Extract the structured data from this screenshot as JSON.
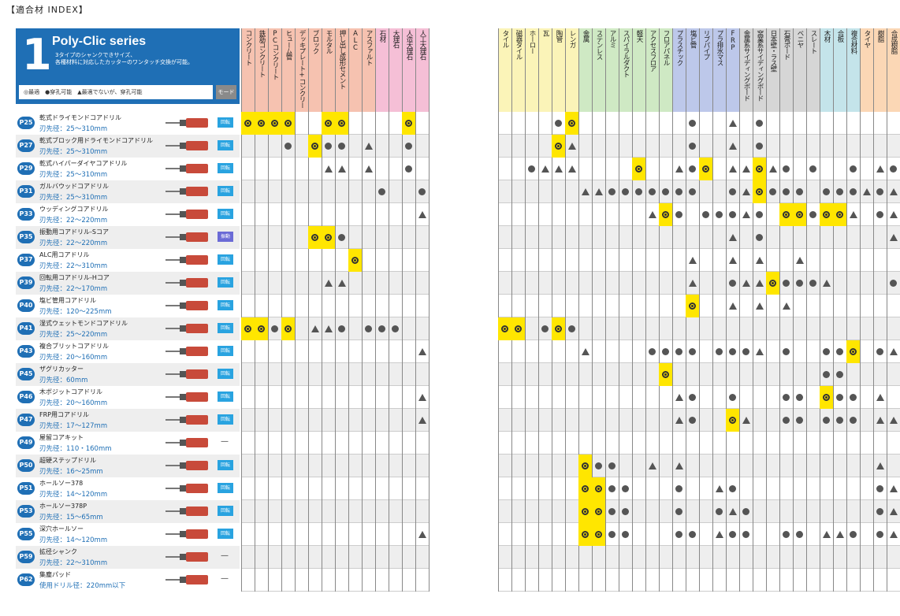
{
  "title": "【適合材 INDEX】",
  "header": {
    "number": "1",
    "series": "Poly-Clic series",
    "desc": "3タイプのシャンクできサイズ、\n各種材料に対応したカッターのワンタッチ交換が可能。",
    "legend": "◎最適　●穿孔可能　▲最適でないが、穿孔可能",
    "mode": "モード"
  },
  "products": [
    {
      "page": "P25",
      "name": "乾式ドライモンドコアドリル",
      "dia": "刃先径：25～310mm",
      "mode": "回転"
    },
    {
      "page": "P27",
      "name": "乾式ブロック用ドライモンドコアドリル",
      "dia": "刃先径：25～310mm",
      "mode": "回転"
    },
    {
      "page": "P29",
      "name": "乾式ハイパーダイヤコアドリル",
      "dia": "刃先径：25～310mm",
      "mode": "回転"
    },
    {
      "page": "P31",
      "name": "ガルバウッドコアドリル",
      "dia": "刃先径：25～310mm",
      "mode": "回転"
    },
    {
      "page": "P33",
      "name": "ウッディングコアドリル",
      "dia": "刃先径：22～220mm",
      "mode": "回転"
    },
    {
      "page": "P35",
      "name": "振動用コアドリル-Sコア",
      "dia": "刃先径：22～220mm",
      "mode": "振動"
    },
    {
      "page": "P37",
      "name": "ALC用コアドリル",
      "dia": "刃先径：22～310mm",
      "mode": "回転"
    },
    {
      "page": "P39",
      "name": "回転用コアドリル-Hコア",
      "dia": "刃先径：22～170mm",
      "mode": "回転"
    },
    {
      "page": "P40",
      "name": "塩ビ管用コアドリル",
      "dia": "刃先径：120～225mm",
      "mode": "回転"
    },
    {
      "page": "P41",
      "name": "湿式ウェットモンドコアドリル",
      "dia": "刃先径：25～220mm",
      "mode": "回転"
    },
    {
      "page": "P43",
      "name": "複合ブリットコアドリル",
      "dia": "刃先径：20～160mm",
      "mode": "回転"
    },
    {
      "page": "P45",
      "name": "ザグリカッター",
      "dia": "刃先径：60mm",
      "mode": "回転"
    },
    {
      "page": "P46",
      "name": "木ボジットコアドリル",
      "dia": "刃先径：20～160mm",
      "mode": "回転"
    },
    {
      "page": "P47",
      "name": "FRP用コアドリル",
      "dia": "刃先径：17～127mm",
      "mode": "回転"
    },
    {
      "page": "P49",
      "name": "屋留コアキット",
      "dia": "刃先径：110・160mm",
      "mode": "—"
    },
    {
      "page": "P50",
      "name": "超硬ステップドリル",
      "dia": "刃先径：16～25mm",
      "mode": "回転"
    },
    {
      "page": "P51",
      "name": "ホールソー378",
      "dia": "刃先径：14～120mm",
      "mode": "回転"
    },
    {
      "page": "P53",
      "name": "ホールソー378P",
      "dia": "刃先径：15～65mm",
      "mode": "回転"
    },
    {
      "page": "P55",
      "name": "深穴ホールソー",
      "dia": "刃先径：14～120mm",
      "mode": "回転"
    },
    {
      "page": "P59",
      "name": "拡径シャンク",
      "dia": "刃先径：22～310mm",
      "mode": "—"
    },
    {
      "page": "P62",
      "name": "集塵パッド",
      "dia": "使用ドリル径：220mm以下",
      "mode": "—"
    }
  ],
  "left_columns": [
    {
      "label": "コンクリート",
      "color": "#f6c2b0"
    },
    {
      "label": "鉄筋コンクリート",
      "color": "#f6c2b0"
    },
    {
      "label": "PCコンクリート",
      "color": "#f6c2b0"
    },
    {
      "label": "ヒューム管",
      "color": "#f6c2b0"
    },
    {
      "label": "デッキプレート+コンクリート",
      "color": "#f6c2b0"
    },
    {
      "label": "ブロック",
      "color": "#f6c2b0"
    },
    {
      "label": "モルタル",
      "color": "#f6c2b0"
    },
    {
      "label": "押し出し成形セメント",
      "color": "#f6c2b0"
    },
    {
      "label": "ALC",
      "color": "#f6c2b0"
    },
    {
      "label": "アスファルト",
      "color": "#f6c2b0"
    },
    {
      "label": "石材",
      "color": "#f5bfd6"
    },
    {
      "label": "大理石",
      "color": "#f5bfd6"
    },
    {
      "label": "人造大理石",
      "color": "#f5bfd6"
    },
    {
      "label": "人工大理石",
      "color": "#f5bfd6"
    }
  ],
  "right_columns": [
    {
      "label": "タイル",
      "color": "#fbf4b8"
    },
    {
      "label": "磁器タイル",
      "color": "#fbf4b8"
    },
    {
      "label": "ホーロー",
      "color": "#fbf4b8"
    },
    {
      "label": "瓦",
      "color": "#fbf4b8"
    },
    {
      "label": "陶管",
      "color": "#fbf4b8"
    },
    {
      "label": "レンガ",
      "color": "#fbf4b8"
    },
    {
      "label": "金属",
      "color": "#cfe9c4"
    },
    {
      "label": "ステンレス",
      "color": "#cfe9c4"
    },
    {
      "label": "アルミ",
      "color": "#cfe9c4"
    },
    {
      "label": "スパイラルダクト",
      "color": "#cfe9c4"
    },
    {
      "label": "軽天",
      "color": "#cfe9c4"
    },
    {
      "label": "アクセスフロア",
      "color": "#cfe9c4"
    },
    {
      "label": "フロアパネル",
      "color": "#cfe9c4"
    },
    {
      "label": "プラスチック",
      "color": "#bdc8ea"
    },
    {
      "label": "塩ビ管",
      "color": "#bdc8ea"
    },
    {
      "label": "リブパイプ",
      "color": "#bdc8ea"
    },
    {
      "label": "プラ排水マス",
      "color": "#bdc8ea"
    },
    {
      "label": "FRP",
      "color": "#bdc8ea"
    },
    {
      "label": "金属系サイディングボード",
      "color": "#d6d6d6"
    },
    {
      "label": "窯業系サイディングボード",
      "color": "#d6d6d6"
    },
    {
      "label": "日本壁・ラス壁",
      "color": "#d6d6d6"
    },
    {
      "label": "石膏ボード",
      "color": "#d6d6d6"
    },
    {
      "label": "ベニヤ",
      "color": "#d6d6d6"
    },
    {
      "label": "スレート",
      "color": "#d6d6d6"
    },
    {
      "label": "木材",
      "color": "#c4e4ea"
    },
    {
      "label": "合板",
      "color": "#c4e4ea"
    },
    {
      "label": "複合材料",
      "color": "#c4e4ea"
    },
    {
      "label": "タイヤ",
      "color": "#fbd7b5"
    },
    {
      "label": "樹脂",
      "color": "#fbd7b5"
    },
    {
      "label": "合成樹脂",
      "color": "#fbd7b5"
    }
  ],
  "left_cells": [
    [
      "a",
      "a",
      "a",
      "a",
      "",
      "",
      "a",
      "a",
      "",
      "",
      "",
      "",
      "a",
      ""
    ],
    [
      "",
      "",
      "",
      "b",
      "",
      "a",
      "b",
      "b",
      "",
      "c",
      "",
      "",
      "b",
      ""
    ],
    [
      "",
      "",
      "",
      "",
      "",
      "",
      "c",
      "c",
      "",
      "c",
      "",
      "",
      "b",
      ""
    ],
    [
      "",
      "",
      "",
      "",
      "",
      "",
      "",
      "",
      "",
      "",
      "b",
      "",
      "",
      "b"
    ],
    [
      "",
      "",
      "",
      "",
      "",
      "",
      "",
      "",
      "",
      "",
      "",
      "",
      "",
      "c"
    ],
    [
      "",
      "",
      "",
      "",
      "",
      "a",
      "a",
      "b",
      "",
      "",
      "",
      "",
      "",
      ""
    ],
    [
      "",
      "",
      "",
      "",
      "",
      "",
      "",
      "",
      "a",
      "",
      "",
      "",
      "",
      ""
    ],
    [
      "",
      "",
      "",
      "",
      "",
      "",
      "c",
      "c",
      "",
      "",
      "",
      "",
      "",
      ""
    ],
    [
      "",
      "",
      "",
      "",
      "",
      "",
      "",
      "",
      "",
      "",
      "",
      "",
      "",
      ""
    ],
    [
      "a",
      "a",
      "b",
      "a",
      "",
      "c",
      "c",
      "b",
      "",
      "b",
      "b",
      "b",
      "",
      ""
    ],
    [
      "",
      "",
      "",
      "",
      "",
      "",
      "",
      "",
      "",
      "",
      "",
      "",
      "",
      "c"
    ],
    [
      "",
      "",
      "",
      "",
      "",
      "",
      "",
      "",
      "",
      "",
      "",
      "",
      "",
      ""
    ],
    [
      "",
      "",
      "",
      "",
      "",
      "",
      "",
      "",
      "",
      "",
      "",
      "",
      "",
      "c"
    ],
    [
      "",
      "",
      "",
      "",
      "",
      "",
      "",
      "",
      "",
      "",
      "",
      "",
      "",
      "c"
    ],
    [
      "",
      "",
      "",
      "",
      "",
      "",
      "",
      "",
      "",
      "",
      "",
      "",
      "",
      ""
    ],
    [
      "",
      "",
      "",
      "",
      "",
      "",
      "",
      "",
      "",
      "",
      "",
      "",
      "",
      ""
    ],
    [
      "",
      "",
      "",
      "",
      "",
      "",
      "",
      "",
      "",
      "",
      "",
      "",
      "",
      ""
    ],
    [
      "",
      "",
      "",
      "",
      "",
      "",
      "",
      "",
      "",
      "",
      "",
      "",
      "",
      ""
    ],
    [
      "",
      "",
      "",
      "",
      "",
      "",
      "",
      "",
      "",
      "",
      "",
      "",
      "",
      "c"
    ],
    [
      "",
      "",
      "",
      "",
      "",
      "",
      "",
      "",
      "",
      "",
      "",
      "",
      "",
      ""
    ],
    [
      "",
      "",
      "",
      "",
      "",
      "",
      "",
      "",
      "",
      "",
      "",
      "",
      "",
      ""
    ]
  ],
  "right_cells": [
    [
      "",
      "",
      "",
      "",
      "b",
      "a",
      "",
      "",
      "",
      "",
      "",
      "",
      "",
      "",
      "b",
      "",
      "",
      "c",
      "",
      "b",
      "",
      "",
      "",
      "",
      "",
      "",
      "",
      "",
      "",
      ""
    ],
    [
      "",
      "",
      "",
      "",
      "a",
      "c",
      "",
      "",
      "",
      "",
      "",
      "",
      "",
      "",
      "b",
      "",
      "",
      "c",
      "",
      "b",
      "",
      "",
      "",
      "",
      "",
      "",
      "",
      "",
      "",
      ""
    ],
    [
      "",
      "",
      "b",
      "c",
      "c",
      "c",
      "",
      "",
      "",
      "",
      "a",
      "",
      "",
      "c",
      "b",
      "a",
      "",
      "c",
      "c",
      "a",
      "c",
      "b",
      "",
      "b",
      "",
      "",
      "b",
      "",
      "c",
      "b"
    ],
    [
      "",
      "",
      "",
      "",
      "",
      "",
      "c",
      "c",
      "b",
      "b",
      "b",
      "b",
      "b",
      "b",
      "b",
      "",
      "",
      "b",
      "c",
      "a",
      "b",
      "b",
      "b",
      "",
      "b",
      "b",
      "b",
      "c",
      "b",
      "c"
    ],
    [
      "",
      "",
      "",
      "",
      "",
      "",
      "",
      "",
      "",
      "",
      "",
      "c",
      "a",
      "b",
      "",
      "b",
      "b",
      "b",
      "c",
      "b",
      "",
      "a",
      "a",
      "b",
      "a",
      "a",
      "c",
      "",
      "b",
      "c"
    ],
    [
      "",
      "",
      "",
      "",
      "",
      "",
      "",
      "",
      "",
      "",
      "",
      "",
      "",
      "",
      "",
      "",
      "",
      "c",
      "",
      "b",
      "",
      "",
      "",
      "",
      "",
      "",
      "",
      "",
      "",
      "c"
    ],
    [
      "",
      "",
      "",
      "",
      "",
      "",
      "",
      "",
      "",
      "",
      "",
      "",
      "",
      "",
      "c",
      "",
      "",
      "c",
      "",
      "c",
      "",
      "",
      "c",
      "",
      "",
      "",
      "",
      "",
      "",
      ""
    ],
    [
      "",
      "",
      "",
      "",
      "",
      "",
      "",
      "",
      "",
      "",
      "",
      "",
      "",
      "",
      "c",
      "",
      "",
      "b",
      "c",
      "c",
      "a",
      "b",
      "b",
      "b",
      "c",
      "",
      "",
      "",
      "",
      "b"
    ],
    [
      "",
      "",
      "",
      "",
      "",
      "",
      "",
      "",
      "",
      "",
      "",
      "",
      "",
      "",
      "a",
      "",
      "",
      "c",
      "",
      "c",
      "",
      "c",
      "",
      "",
      "",
      "",
      "",
      "",
      "",
      ""
    ],
    [
      "a",
      "a",
      "",
      "b",
      "a",
      "b",
      "",
      "",
      "",
      "",
      "",
      "",
      "",
      "",
      "",
      "",
      "",
      "",
      "",
      "",
      "",
      "",
      "",
      "",
      "",
      "",
      "",
      "",
      "",
      ""
    ],
    [
      "",
      "",
      "",
      "",
      "",
      "",
      "c",
      "",
      "",
      "",
      "",
      "b",
      "b",
      "b",
      "b",
      "",
      "b",
      "b",
      "b",
      "c",
      "",
      "b",
      "",
      "",
      "b",
      "b",
      "a",
      "",
      "b",
      "c"
    ],
    [
      "",
      "",
      "",
      "",
      "",
      "",
      "",
      "",
      "",
      "",
      "",
      "",
      "a",
      "",
      "",
      "",
      "",
      "",
      "",
      "",
      "",
      "",
      "",
      "",
      "b",
      "b",
      "",
      "",
      "",
      ""
    ],
    [
      "",
      "",
      "",
      "",
      "",
      "",
      "",
      "",
      "",
      "",
      "",
      "",
      "",
      "c",
      "b",
      "",
      "",
      "b",
      "",
      "",
      "",
      "b",
      "b",
      "",
      "a",
      "b",
      "b",
      "",
      "c",
      ""
    ],
    [
      "",
      "",
      "",
      "",
      "",
      "",
      "",
      "",
      "",
      "",
      "",
      "",
      "",
      "c",
      "b",
      "",
      "",
      "a",
      "c",
      "",
      "",
      "b",
      "b",
      "",
      "b",
      "b",
      "b",
      "",
      "c",
      "c"
    ],
    [
      "",
      "",
      "",
      "",
      "",
      "",
      "",
      "",
      "",
      "",
      "",
      "",
      "",
      "",
      "",
      "",
      "",
      "",
      "",
      "",
      "",
      "",
      "",
      "",
      "",
      "",
      "",
      "",
      "",
      ""
    ],
    [
      "",
      "",
      "",
      "",
      "",
      "",
      "a",
      "b",
      "b",
      "",
      "",
      "c",
      "",
      "c",
      "",
      "",
      "",
      "",
      "",
      "",
      "",
      "",
      "",
      "",
      "",
      "",
      "",
      "",
      "c",
      ""
    ],
    [
      "",
      "",
      "",
      "",
      "",
      "",
      "a",
      "a",
      "b",
      "b",
      "",
      "",
      "",
      "b",
      "",
      "",
      "c",
      "b",
      "",
      "",
      "",
      "",
      "",
      "",
      "",
      "",
      "",
      "",
      "b",
      "c"
    ],
    [
      "",
      "",
      "",
      "",
      "",
      "",
      "a",
      "a",
      "b",
      "b",
      "",
      "",
      "",
      "b",
      "",
      "",
      "b",
      "c",
      "b",
      "",
      "",
      "",
      "",
      "",
      "",
      "",
      "",
      "",
      "b",
      "c"
    ],
    [
      "",
      "",
      "",
      "",
      "",
      "",
      "a",
      "a",
      "b",
      "b",
      "",
      "",
      "",
      "b",
      "b",
      "",
      "c",
      "b",
      "b",
      "",
      "",
      "b",
      "b",
      "",
      "c",
      "c",
      "b",
      "",
      "b",
      "c"
    ],
    [
      "",
      "",
      "",
      "",
      "",
      "",
      "",
      "",
      "",
      "",
      "",
      "",
      "",
      "",
      "",
      "",
      "",
      "",
      "",
      "",
      "",
      "",
      "",
      "",
      "",
      "",
      "",
      "",
      "",
      ""
    ],
    [
      "",
      "",
      "",
      "",
      "",
      "",
      "",
      "",
      "",
      "",
      "",
      "",
      "",
      "",
      "",
      "",
      "",
      "",
      "",
      "",
      "",
      "",
      "",
      "",
      "",
      "",
      "",
      "",
      "",
      ""
    ]
  ]
}
